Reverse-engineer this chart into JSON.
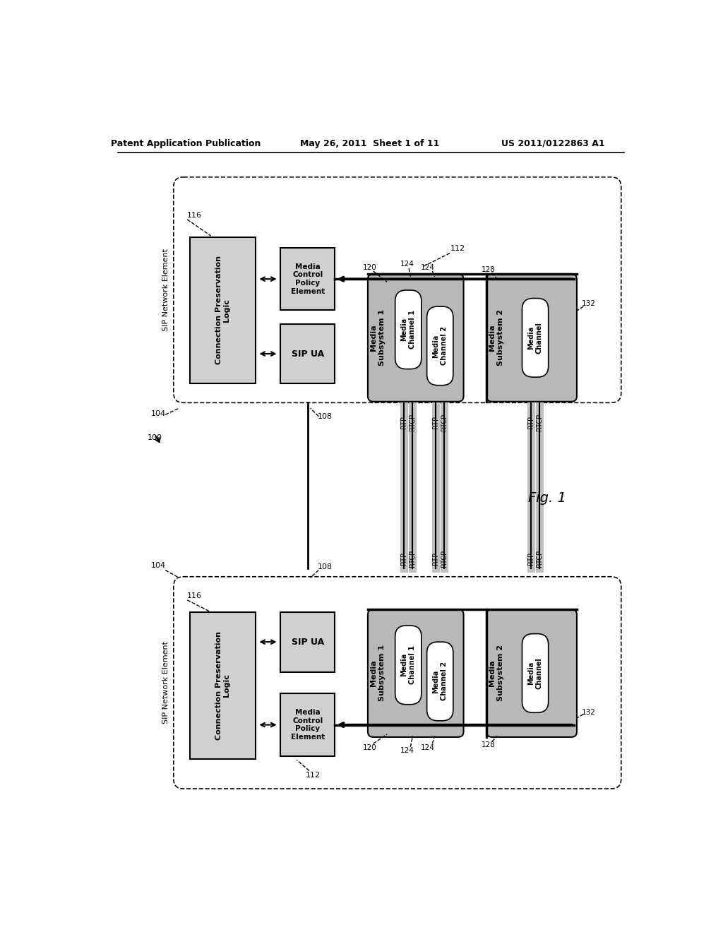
{
  "header_left": "Patent Application Publication",
  "header_mid": "May 26, 2011  Sheet 1 of 11",
  "header_right": "US 2011/0122863 A1",
  "fig_label": "Fig. 1",
  "bg_color": "#ffffff",
  "gray_light": "#d0d0d0",
  "gray_medium": "#b8b8b8",
  "gray_dark": "#888888",
  "black": "#000000"
}
